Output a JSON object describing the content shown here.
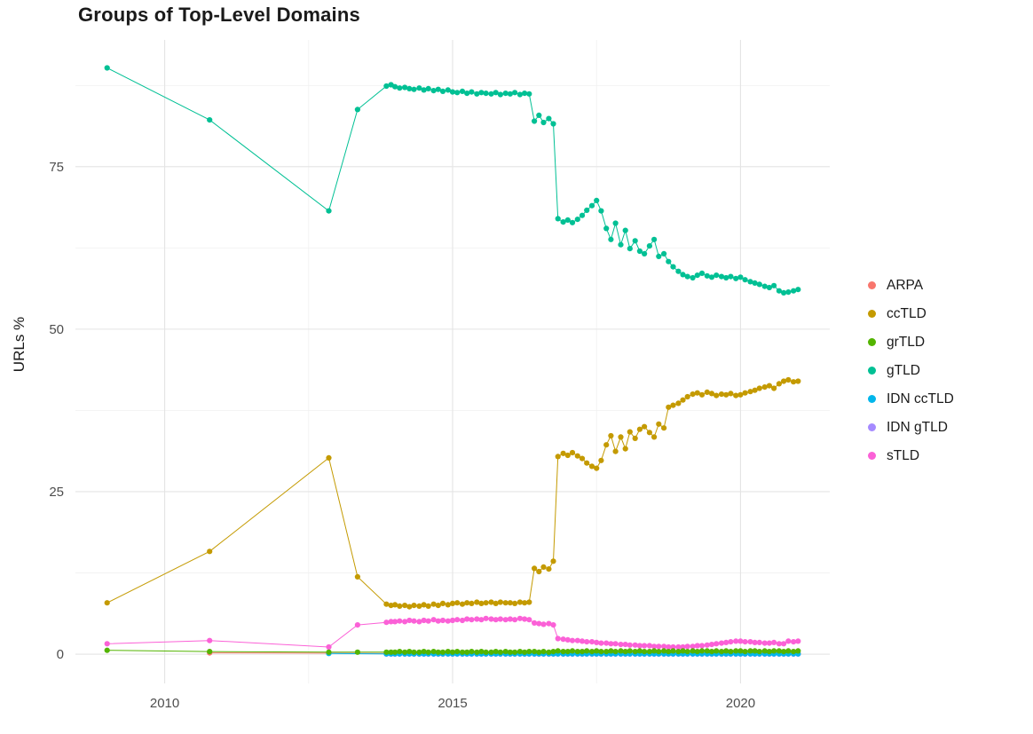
{
  "chart_data": {
    "type": "line",
    "title": "Groups of Top-Level Domains",
    "xlabel": "",
    "ylabel": "URLs %",
    "grid": true,
    "legend_position": "right",
    "xlim": [
      2008.45,
      2021.55
    ],
    "ylim": [
      -4.5,
      94.5
    ],
    "x_major": [
      2010,
      2015,
      2020
    ],
    "x_tick_labels": [
      "2010",
      "2015",
      "2020"
    ],
    "x_minor": [
      2012.5,
      2017.5
    ],
    "y_major": [
      0,
      25,
      50,
      75
    ],
    "y_tick_labels": [
      "0",
      "25",
      "50",
      "75"
    ],
    "y_minor": [
      12.5,
      37.5,
      62.5,
      87.5
    ],
    "x_dense": [
      2013.85,
      2013.93,
      2014.0,
      2014.08,
      2014.17,
      2014.25,
      2014.33,
      2014.42,
      2014.5,
      2014.58,
      2014.67,
      2014.75,
      2014.83,
      2014.92,
      2015.0,
      2015.08,
      2015.17,
      2015.25,
      2015.33,
      2015.42,
      2015.5,
      2015.58,
      2015.67,
      2015.75,
      2015.83,
      2015.92,
      2016.0,
      2016.08,
      2016.17,
      2016.25,
      2016.33,
      2016.42,
      2016.5,
      2016.58,
      2016.67,
      2016.75,
      2016.83,
      2016.92,
      2017.0,
      2017.08,
      2017.17,
      2017.25,
      2017.33,
      2017.42,
      2017.5,
      2017.58,
      2017.67,
      2017.75,
      2017.83,
      2017.92,
      2018.0,
      2018.08,
      2018.17,
      2018.25,
      2018.33,
      2018.42,
      2018.5,
      2018.58,
      2018.67,
      2018.75,
      2018.83,
      2018.92,
      2019.0,
      2019.08,
      2019.17,
      2019.25,
      2019.33,
      2019.42,
      2019.5,
      2019.58,
      2019.67,
      2019.75,
      2019.83,
      2019.92,
      2020.0,
      2020.08,
      2020.17,
      2020.25,
      2020.33,
      2020.42,
      2020.5,
      2020.58,
      2020.67,
      2020.75,
      2020.83,
      2020.92,
      2021.0
    ],
    "series": [
      {
        "name": "ARPA",
        "color": "#F8766D",
        "sparse": [
          [
            2010.78,
            0.2
          ],
          [
            2012.85,
            0.15
          ]
        ],
        "y_fill": 0.1
      },
      {
        "name": "ccTLD",
        "color": "#C49A00",
        "sparse": [
          [
            2009.0,
            7.9
          ],
          [
            2010.78,
            15.8
          ],
          [
            2012.85,
            30.2
          ],
          [
            2013.35,
            11.9
          ]
        ],
        "y": [
          7.7,
          7.5,
          7.6,
          7.4,
          7.5,
          7.3,
          7.5,
          7.4,
          7.6,
          7.4,
          7.7,
          7.5,
          7.8,
          7.6,
          7.8,
          7.9,
          7.7,
          7.9,
          7.8,
          8.0,
          7.8,
          7.9,
          8.0,
          7.8,
          8.0,
          7.9,
          7.9,
          7.8,
          8.0,
          7.9,
          8.0,
          13.2,
          12.7,
          13.4,
          13.1,
          14.3,
          30.4,
          30.9,
          30.6,
          31.0,
          30.5,
          30.1,
          29.4,
          28.9,
          28.6,
          29.8,
          32.2,
          33.6,
          31.2,
          33.4,
          31.6,
          34.2,
          33.2,
          34.6,
          35.0,
          34.1,
          33.4,
          35.4,
          34.8,
          38.0,
          38.3,
          38.6,
          39.1,
          39.6,
          40.0,
          40.2,
          39.9,
          40.3,
          40.1,
          39.8,
          40.0,
          39.9,
          40.1,
          39.8,
          39.9,
          40.2,
          40.4,
          40.6,
          40.9,
          41.1,
          41.3,
          40.9,
          41.6,
          42.0,
          42.2,
          41.9,
          42.0
        ]
      },
      {
        "name": "grTLD",
        "color": "#53B400",
        "sparse": [
          [
            2009.0,
            0.6
          ],
          [
            2010.78,
            0.4
          ],
          [
            2012.85,
            0.3
          ],
          [
            2013.35,
            0.3
          ]
        ],
        "y": [
          0.3,
          0.3,
          0.3,
          0.4,
          0.3,
          0.4,
          0.3,
          0.3,
          0.4,
          0.3,
          0.4,
          0.3,
          0.3,
          0.4,
          0.3,
          0.4,
          0.3,
          0.3,
          0.4,
          0.3,
          0.4,
          0.3,
          0.3,
          0.4,
          0.3,
          0.4,
          0.3,
          0.3,
          0.4,
          0.3,
          0.4,
          0.4,
          0.3,
          0.4,
          0.3,
          0.4,
          0.5,
          0.4,
          0.4,
          0.5,
          0.4,
          0.4,
          0.5,
          0.4,
          0.5,
          0.4,
          0.4,
          0.5,
          0.4,
          0.5,
          0.4,
          0.5,
          0.4,
          0.5,
          0.4,
          0.4,
          0.5,
          0.4,
          0.5,
          0.4,
          0.5,
          0.4,
          0.5,
          0.4,
          0.5,
          0.4,
          0.5,
          0.5,
          0.4,
          0.5,
          0.4,
          0.5,
          0.4,
          0.5,
          0.5,
          0.4,
          0.5,
          0.5,
          0.4,
          0.5,
          0.4,
          0.5,
          0.5,
          0.4,
          0.5,
          0.4,
          0.5
        ]
      },
      {
        "name": "gTLD",
        "color": "#00C094",
        "sparse": [
          [
            2009.0,
            90.2
          ],
          [
            2010.78,
            82.2
          ],
          [
            2012.85,
            68.2
          ],
          [
            2013.35,
            83.8
          ]
        ],
        "y": [
          87.4,
          87.6,
          87.3,
          87.1,
          87.2,
          87.0,
          86.9,
          87.1,
          86.8,
          87.0,
          86.7,
          86.9,
          86.6,
          86.8,
          86.5,
          86.4,
          86.6,
          86.3,
          86.5,
          86.2,
          86.4,
          86.3,
          86.2,
          86.4,
          86.1,
          86.3,
          86.2,
          86.4,
          86.1,
          86.3,
          86.2,
          82.0,
          82.9,
          81.8,
          82.4,
          81.6,
          67.0,
          66.5,
          66.8,
          66.4,
          66.9,
          67.5,
          68.3,
          69.0,
          69.8,
          68.2,
          65.5,
          63.8,
          66.3,
          63.0,
          65.2,
          62.4,
          63.6,
          62.0,
          61.6,
          62.8,
          63.8,
          61.2,
          61.6,
          60.4,
          59.6,
          58.9,
          58.4,
          58.1,
          57.9,
          58.3,
          58.6,
          58.2,
          58.0,
          58.3,
          58.1,
          57.9,
          58.1,
          57.8,
          58.0,
          57.6,
          57.3,
          57.1,
          56.9,
          56.6,
          56.4,
          56.7,
          55.9,
          55.6,
          55.7,
          55.9,
          56.1
        ]
      },
      {
        "name": "IDN ccTLD",
        "color": "#00B6EB",
        "sparse": [
          [
            2012.85,
            0.1
          ]
        ],
        "y_fill": 0.05
      },
      {
        "name": "IDN gTLD",
        "color": "#A58AFF",
        "sparse": [],
        "y_fill": 0.02
      },
      {
        "name": "sTLD",
        "color": "#FB61D7",
        "sparse": [
          [
            2009.0,
            1.6
          ],
          [
            2010.78,
            2.1
          ],
          [
            2012.85,
            1.1
          ],
          [
            2013.35,
            4.5
          ]
        ],
        "y": [
          4.9,
          5.0,
          5.0,
          5.1,
          5.0,
          5.2,
          5.1,
          5.0,
          5.2,
          5.1,
          5.3,
          5.1,
          5.2,
          5.1,
          5.2,
          5.3,
          5.2,
          5.4,
          5.3,
          5.4,
          5.3,
          5.5,
          5.4,
          5.3,
          5.4,
          5.3,
          5.4,
          5.3,
          5.5,
          5.4,
          5.3,
          4.8,
          4.7,
          4.6,
          4.7,
          4.5,
          2.4,
          2.3,
          2.2,
          2.1,
          2.1,
          2.0,
          1.9,
          1.9,
          1.8,
          1.7,
          1.7,
          1.6,
          1.6,
          1.5,
          1.5,
          1.4,
          1.4,
          1.3,
          1.3,
          1.3,
          1.2,
          1.2,
          1.2,
          1.1,
          1.1,
          1.1,
          1.1,
          1.2,
          1.2,
          1.3,
          1.3,
          1.4,
          1.5,
          1.6,
          1.7,
          1.8,
          1.9,
          2.0,
          2.0,
          1.9,
          1.9,
          1.8,
          1.8,
          1.7,
          1.7,
          1.8,
          1.6,
          1.6,
          2.0,
          1.9,
          2.0
        ]
      }
    ],
    "draw_order": [
      "ARPA",
      "IDN gTLD",
      "IDN ccTLD",
      "gTLD",
      "ccTLD",
      "sTLD",
      "grTLD"
    ]
  },
  "style": {
    "grid_major_color": "#e4e4e4",
    "grid_minor_color": "#f2f2f2",
    "tick_label_color": "#4d4d4d"
  }
}
